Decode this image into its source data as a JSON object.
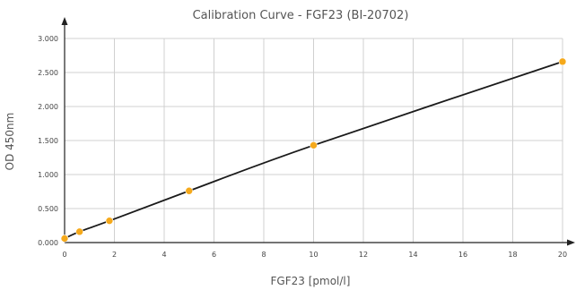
{
  "chart_data": {
    "type": "scatter",
    "title": "Calibration Curve - FGF23 (BI-20702)",
    "xlabel": "FGF23 [pmol/l]",
    "ylabel": "OD 450nm",
    "xlim": [
      0,
      20
    ],
    "ylim": [
      0,
      3
    ],
    "x_ticks": [
      "0",
      "2",
      "4",
      "6",
      "8",
      "10",
      "12",
      "14",
      "16",
      "18",
      "20"
    ],
    "y_ticks": [
      "0.000",
      "0.500",
      "1.000",
      "1.500",
      "2.000",
      "2.500",
      "3.000"
    ],
    "grid": true,
    "legend": "none",
    "point_color": "#f5a91b",
    "line_color": "#1a1a1a",
    "points": [
      {
        "x": 0,
        "y": 0.06
      },
      {
        "x": 0.6,
        "y": 0.16
      },
      {
        "x": 1.8,
        "y": 0.32
      },
      {
        "x": 5,
        "y": 0.76
      },
      {
        "x": 10,
        "y": 1.43
      },
      {
        "x": 20,
        "y": 2.66
      }
    ]
  }
}
